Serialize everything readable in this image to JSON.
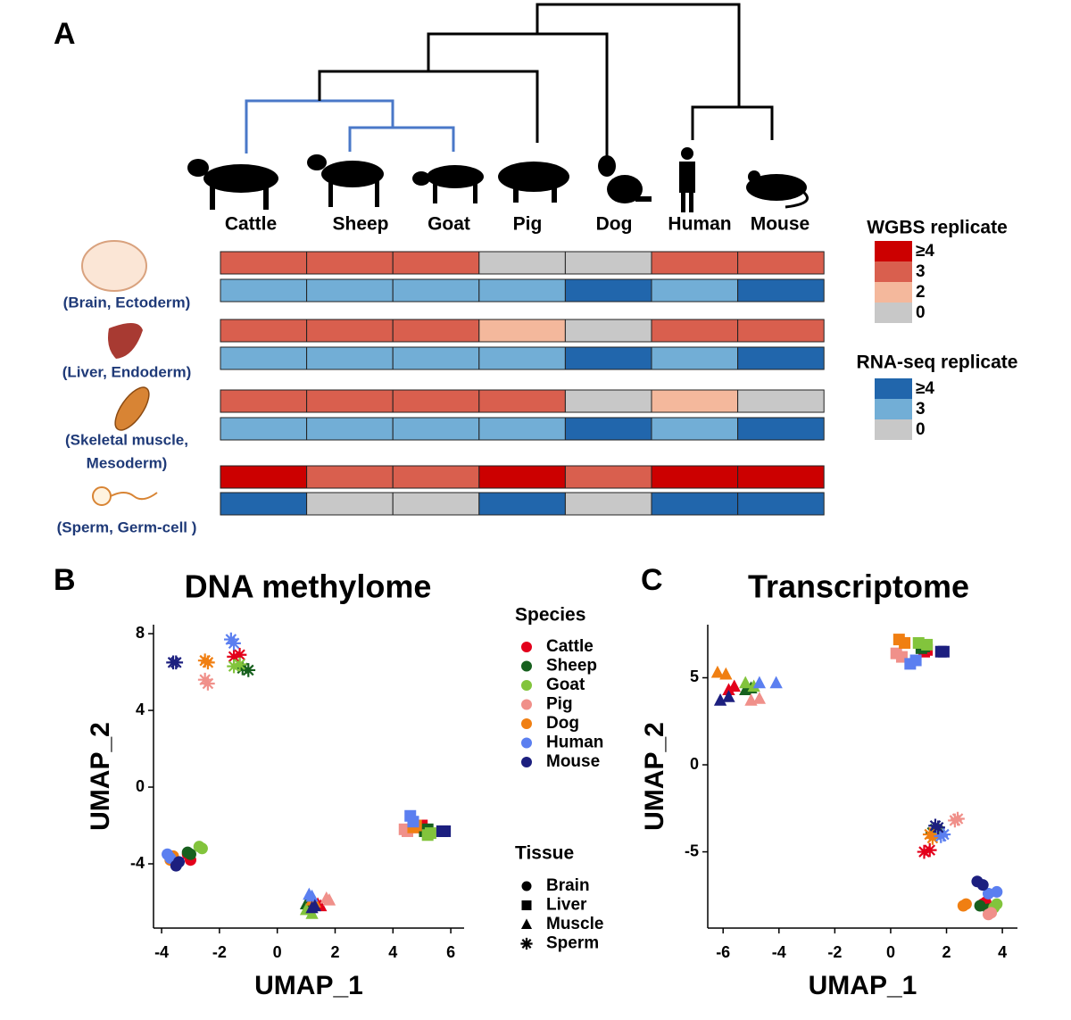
{
  "panel_labels": [
    "A",
    "B",
    "C"
  ],
  "heatmap": {
    "species": [
      "Cattle",
      "Sheep",
      "Goat",
      "Pig",
      "Dog",
      "Human",
      "Mouse"
    ],
    "tissues": [
      {
        "label": [
          "(Brain, Ectoderm)"
        ],
        "wgbs": [
          3,
          3,
          3,
          0,
          0,
          3,
          3
        ],
        "rna": [
          3,
          3,
          3,
          3,
          4,
          3,
          4
        ]
      },
      {
        "label": [
          "(Liver, Endoderm)"
        ],
        "wgbs": [
          3,
          3,
          3,
          2,
          0,
          3,
          3
        ],
        "rna": [
          3,
          3,
          3,
          3,
          4,
          3,
          4
        ]
      },
      {
        "label": [
          "(Skeletal muscle,",
          "Mesoderm)"
        ],
        "wgbs": [
          3,
          3,
          3,
          3,
          0,
          2,
          0
        ],
        "rna": [
          3,
          3,
          3,
          3,
          4,
          3,
          4
        ]
      },
      {
        "label": [
          "(Sperm, Germ-cell )"
        ],
        "wgbs": [
          4,
          3,
          3,
          4,
          3,
          4,
          4
        ],
        "rna": [
          4,
          0,
          0,
          4,
          0,
          4,
          4
        ]
      }
    ],
    "wgbs_legend": {
      "title": "WGBS replicate",
      "levels": [
        {
          "value": 4,
          "label": "≥4",
          "color": "#cc0000"
        },
        {
          "value": 3,
          "color": "#d95f4e"
        },
        {
          "value": 2,
          "color": "#f4b89c"
        },
        {
          "value": 0,
          "color": "#c8c8c8"
        }
      ]
    },
    "rna_legend": {
      "title": "RNA-seq replicate",
      "levels": [
        {
          "value": 4,
          "label": "≥4",
          "color": "#2166ac"
        },
        {
          "value": 3,
          "color": "#72aed6"
        },
        {
          "value": 0,
          "color": "#c8c8c8"
        }
      ]
    }
  },
  "chart_data": [
    {
      "type": "scatter",
      "title": "DNA methylome",
      "x_label": "UMAP_1",
      "y_label": "UMAP_2",
      "xlim": [
        -4.28,
        6.46
      ],
      "ylim": [
        -7.35,
        8.47
      ],
      "xticks": [
        -4,
        -2,
        0,
        2,
        4,
        6
      ],
      "yticks": [
        -4,
        0,
        4,
        8
      ],
      "species_legend_title": "Species",
      "tissue_legend_title": "Tissue",
      "tissue_legend": [
        {
          "name": "Brain",
          "marker": "circle"
        },
        {
          "name": "Liver",
          "marker": "square"
        },
        {
          "name": "Muscle",
          "marker": "triangle"
        },
        {
          "name": "Sperm",
          "marker": "asterisk"
        }
      ],
      "series": [
        {
          "name": "Cattle",
          "color": "#e3001b",
          "tissue": [
            "Brain",
            "Brain",
            "Liver",
            "Liver",
            "Muscle",
            "Muscle",
            "Sperm",
            "Sperm"
          ],
          "x": [
            -3.0,
            -3.1,
            5.0,
            4.9,
            1.5,
            1.4,
            -1.5,
            -1.3
          ],
          "y": [
            -3.8,
            -3.5,
            -2.0,
            -2.1,
            -6.2,
            -6.1,
            6.8,
            6.9
          ]
        },
        {
          "name": "Sheep",
          "color": "#17601e",
          "tissue": [
            "Brain",
            "Brain",
            "Liver",
            "Liver",
            "Muscle",
            "Muscle",
            "Sperm",
            "Sperm"
          ],
          "x": [
            -3.1,
            -3.0,
            5.1,
            5.2,
            1.1,
            1.0,
            -1.2,
            -1.0
          ],
          "y": [
            -3.4,
            -3.5,
            -2.3,
            -2.2,
            -6.3,
            -6.1,
            6.2,
            6.1
          ]
        },
        {
          "name": "Goat",
          "color": "#82c43c",
          "tissue": [
            "Brain",
            "Brain",
            "Liver",
            "Liver",
            "Muscle",
            "Muscle",
            "Sperm",
            "Sperm"
          ],
          "x": [
            -2.7,
            -2.6,
            5.3,
            5.2,
            1.2,
            1.0,
            -1.3,
            -1.5
          ],
          "y": [
            -3.1,
            -3.2,
            -2.4,
            -2.5,
            -6.6,
            -6.4,
            6.4,
            6.3
          ]
        },
        {
          "name": "Pig",
          "color": "#f0908a",
          "tissue": [
            "Brain",
            "Brain",
            "Liver",
            "Liver",
            "Muscle",
            "Muscle",
            "Sperm",
            "Sperm"
          ],
          "x": [
            -3.6,
            -3.5,
            4.4,
            4.5,
            1.7,
            1.8,
            -2.5,
            -2.4
          ],
          "y": [
            -3.7,
            -3.9,
            -2.2,
            -2.3,
            -5.8,
            -5.9,
            5.6,
            5.4
          ]
        },
        {
          "name": "Dog",
          "color": "#f07f12",
          "tissue": [
            "Brain",
            "Brain",
            "Liver",
            "Liver",
            "Muscle",
            "Muscle",
            "Sperm",
            "Sperm"
          ],
          "x": [
            -3.7,
            -3.6,
            4.7,
            4.8,
            1.3,
            1.2,
            -2.5,
            -2.4
          ],
          "y": [
            -3.8,
            -3.6,
            -2.1,
            -2.0,
            -6.0,
            -5.9,
            6.6,
            6.5
          ]
        },
        {
          "name": "Human",
          "color": "#5b7ff0",
          "tissue": [
            "Brain",
            "Brain",
            "Liver",
            "Liver",
            "Muscle",
            "Muscle",
            "Sperm",
            "Sperm"
          ],
          "x": [
            -3.8,
            -3.7,
            4.6,
            4.7,
            1.1,
            1.2,
            -1.6,
            -1.5
          ],
          "y": [
            -3.5,
            -3.7,
            -1.5,
            -1.8,
            -5.6,
            -5.7,
            7.7,
            7.5
          ]
        },
        {
          "name": "Mouse",
          "color": "#1c1f7f",
          "tissue": [
            "Brain",
            "Brain",
            "Liver",
            "Liver",
            "Muscle",
            "Muscle",
            "Sperm",
            "Sperm"
          ],
          "x": [
            -3.5,
            -3.4,
            5.8,
            5.7,
            1.3,
            1.2,
            -3.6,
            -3.5
          ],
          "y": [
            -4.1,
            -3.9,
            -2.3,
            -2.3,
            -6.2,
            -6.3,
            6.5,
            6.5
          ]
        }
      ]
    },
    {
      "type": "scatter",
      "title": "Transcriptome",
      "x_label": "UMAP_1",
      "y_label": "UMAP_2",
      "xlim": [
        -6.55,
        4.54
      ],
      "ylim": [
        -9.38,
        8.05
      ],
      "xticks": [
        -6,
        -4,
        -2,
        0,
        2,
        4
      ],
      "yticks": [
        -5,
        0,
        5
      ],
      "series": [
        {
          "name": "Cattle",
          "color": "#e3001b",
          "tissue": [
            "Brain",
            "Brain",
            "Liver",
            "Liver",
            "Muscle",
            "Muscle",
            "Sperm",
            "Sperm"
          ],
          "x": [
            3.3,
            3.4,
            1.2,
            1.3,
            -5.8,
            -5.6,
            1.4,
            1.2
          ],
          "y": [
            -8.0,
            -7.9,
            6.5,
            6.6,
            4.3,
            4.5,
            -4.9,
            -5.0
          ]
        },
        {
          "name": "Sheep",
          "color": "#17601e",
          "tissue": [
            "Brain",
            "Brain",
            "Liver",
            "Liver",
            "Muscle",
            "Muscle",
            "Sperm",
            "Sperm"
          ],
          "x": [
            3.2,
            3.5,
            1.1,
            1.2,
            -5.0,
            -5.2,
            1.6,
            1.5
          ],
          "y": [
            -8.1,
            -8.3,
            6.7,
            6.8,
            4.4,
            4.3,
            -3.7,
            -3.9
          ]
        },
        {
          "name": "Goat",
          "color": "#82c43c",
          "tissue": [
            "Brain",
            "Brain",
            "Liver",
            "Liver",
            "Muscle",
            "Muscle",
            "Sperm",
            "Sperm"
          ],
          "x": [
            3.8,
            3.7,
            1.0,
            1.3,
            -5.2,
            -4.9,
            1.7,
            1.6
          ],
          "y": [
            -8.0,
            -8.2,
            7.0,
            6.9,
            4.7,
            4.5,
            -3.8,
            -4.0
          ]
        },
        {
          "name": "Pig",
          "color": "#f0908a",
          "tissue": [
            "Brain",
            "Brain",
            "Liver",
            "Liver",
            "Muscle",
            "Muscle",
            "Sperm",
            "Sperm"
          ],
          "x": [
            3.5,
            3.6,
            0.2,
            0.4,
            -5.0,
            -4.7,
            2.4,
            2.3
          ],
          "y": [
            -8.6,
            -8.5,
            6.4,
            6.2,
            3.7,
            3.8,
            -3.1,
            -3.2
          ]
        },
        {
          "name": "Dog",
          "color": "#f07f12",
          "tissue": [
            "Brain",
            "Brain",
            "Liver",
            "Liver",
            "Muscle",
            "Muscle",
            "Sperm",
            "Sperm"
          ],
          "x": [
            2.6,
            2.7,
            0.3,
            0.5,
            -6.2,
            -5.9,
            1.5,
            1.4
          ],
          "y": [
            -8.1,
            -8.0,
            7.2,
            7.0,
            5.3,
            5.2,
            -4.2,
            -4.0
          ]
        },
        {
          "name": "Human",
          "color": "#5b7ff0",
          "tissue": [
            "Brain",
            "Brain",
            "Liver",
            "Liver",
            "Muscle",
            "Muscle",
            "Sperm",
            "Sperm"
          ],
          "x": [
            3.5,
            3.8,
            0.7,
            0.9,
            -4.7,
            -4.1,
            1.8,
            1.9
          ],
          "y": [
            -7.4,
            -7.3,
            5.8,
            6.0,
            4.7,
            4.7,
            -4.1,
            -4.0
          ]
        },
        {
          "name": "Mouse",
          "color": "#1c1f7f",
          "tissue": [
            "Brain",
            "Brain",
            "Liver",
            "Liver",
            "Muscle",
            "Muscle",
            "Sperm",
            "Sperm"
          ],
          "x": [
            3.1,
            3.3,
            1.8,
            1.9,
            -6.1,
            -5.8,
            1.7,
            1.6
          ],
          "y": [
            -6.7,
            -6.9,
            6.5,
            6.5,
            3.7,
            3.9,
            -3.6,
            -3.5
          ]
        }
      ]
    }
  ]
}
